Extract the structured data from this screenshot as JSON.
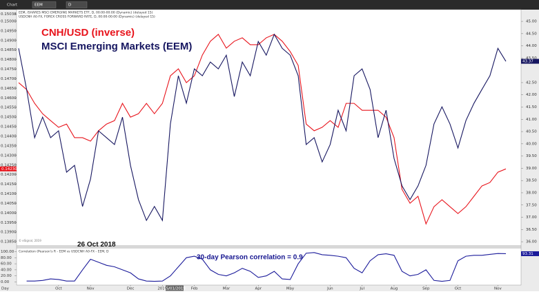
{
  "toolbar": {
    "title": "Chart",
    "symbol": "EEM",
    "interval": "D"
  },
  "chart_data": [
    {
      "type": "line",
      "header": [
        "EEM, ISHARES MSCI EMERGING MARKETS ETF, D, 00:00-00:00 (Dynamic) (delayed 15)",
        "USDCNH A0-FX, FOREX CROSS FORWARD RATE, D, 00:00-00:00 (Dynamic) (delayed 15)"
      ],
      "footnote": "© eSignal, 2019",
      "annotations": [
        {
          "text": "CNH/USD (inverse)",
          "color": "#e8141c"
        },
        {
          "text": "MSCI Emerging Markets (EEM)",
          "color": "#161660"
        },
        {
          "text": "26 Oct 2018",
          "color": "#111111"
        }
      ],
      "ylim": [
        0.13836,
        0.15061
      ],
      "yticks": [
        {
          "value": 0.15038,
          "label": "0.15038"
        },
        {
          "value": 0.15,
          "label": "0.15000"
        },
        {
          "value": 0.1495,
          "label": "0.14950"
        },
        {
          "value": 0.149,
          "label": "0.14900"
        },
        {
          "value": 0.1485,
          "label": "0.14850"
        },
        {
          "value": 0.148,
          "label": "0.14800"
        },
        {
          "value": 0.1475,
          "label": "0.14750"
        },
        {
          "value": 0.147,
          "label": "0.14700"
        },
        {
          "value": 0.1465,
          "label": "0.14650"
        },
        {
          "value": 0.146,
          "label": "0.14600"
        },
        {
          "value": 0.1455,
          "label": "0.14550"
        },
        {
          "value": 0.145,
          "label": "0.14500"
        },
        {
          "value": 0.1445,
          "label": "0.14450"
        },
        {
          "value": 0.144,
          "label": "0.14400"
        },
        {
          "value": 0.1435,
          "label": "0.14350"
        },
        {
          "value": 0.143,
          "label": "0.14300"
        },
        {
          "value": 0.1425,
          "label": "0.14250"
        },
        {
          "value": 0.142,
          "label": "0.14200"
        },
        {
          "value": 0.1415,
          "label": "0.14150"
        },
        {
          "value": 0.141,
          "label": "0.14100"
        },
        {
          "value": 0.1405,
          "label": "0.14050"
        },
        {
          "value": 0.14,
          "label": "0.14000"
        },
        {
          "value": 0.1395,
          "label": "0.13950"
        },
        {
          "value": 0.139,
          "label": "0.13900"
        },
        {
          "value": 0.1385,
          "label": "0.13850"
        }
      ],
      "y2lim": [
        35.89,
        45.48
      ],
      "y2ticks": [
        {
          "value": 45,
          "label": "45.00"
        },
        {
          "value": 44.5,
          "label": "44.50"
        },
        {
          "value": 44,
          "label": "44.00"
        },
        {
          "value": 43.5,
          "label": "43.50"
        },
        {
          "value": 42.5,
          "label": "42.50"
        },
        {
          "value": 42,
          "label": "42.00"
        },
        {
          "value": 41.5,
          "label": "41.50"
        },
        {
          "value": 41,
          "label": "41.00"
        },
        {
          "value": 40.5,
          "label": "40.50"
        },
        {
          "value": 40,
          "label": "40.00"
        },
        {
          "value": 39.5,
          "label": "39.50"
        },
        {
          "value": 39,
          "label": "39.00"
        },
        {
          "value": 38.5,
          "label": "38.50"
        },
        {
          "value": 38,
          "label": "38.00"
        },
        {
          "value": 37.5,
          "label": "37.50"
        },
        {
          "value": 37,
          "label": "37.00"
        },
        {
          "value": 36.5,
          "label": "36.50"
        },
        {
          "value": 36,
          "label": "36.00"
        }
      ],
      "series": [
        {
          "name": "USDCNH A0-FX",
          "color": "#e8141c",
          "axis": "y",
          "values": [
            0.1468,
            0.14644,
            0.14572,
            0.14518,
            0.14482,
            0.14447,
            0.14464,
            0.14393,
            0.14393,
            0.14375,
            0.14429,
            0.14464,
            0.14482,
            0.14572,
            0.145,
            0.14518,
            0.14572,
            0.14518,
            0.14572,
            0.14716,
            0.14752,
            0.1468,
            0.14716,
            0.14824,
            0.14896,
            0.14932,
            0.1486,
            0.14896,
            0.14914,
            0.14878,
            0.14878,
            0.14914,
            0.14932,
            0.14896,
            0.14842,
            0.1477,
            0.14464,
            0.14429,
            0.14447,
            0.14482,
            0.14447,
            0.14572,
            0.14572,
            0.14536,
            0.14536,
            0.14536,
            0.145,
            0.14393,
            0.14123,
            0.14051,
            0.14087,
            0.13943,
            0.14033,
            0.14069,
            0.14033,
            0.13997,
            0.14033,
            0.14087,
            0.14141,
            0.14159,
            0.14213,
            0.1423
          ],
          "value_labels": [
            null,
            null,
            null,
            null,
            null,
            null,
            null,
            null,
            null,
            null,
            null,
            null,
            null,
            null,
            null,
            null,
            null,
            null,
            null,
            null,
            null,
            null,
            null,
            null,
            null,
            null,
            null,
            null,
            null,
            null,
            null,
            null,
            null,
            null,
            null,
            null,
            null,
            null,
            null,
            null,
            null,
            null,
            null,
            null,
            null,
            null,
            null,
            null,
            null,
            null,
            null,
            null,
            null,
            null,
            null,
            null,
            null,
            null,
            null,
            null,
            null,
            "0.14230"
          ]
        },
        {
          "name": "EEM",
          "color": "#161660",
          "axis": "y2",
          "values": [
            43.9,
            42.22,
            40.25,
            41.09,
            40.25,
            40.53,
            38.84,
            39.12,
            37.44,
            38.56,
            40.53,
            40.25,
            39.97,
            41.09,
            39.12,
            37.72,
            36.87,
            37.44,
            36.87,
            40.81,
            42.78,
            41.66,
            43.06,
            42.78,
            43.34,
            43.06,
            43.62,
            41.93,
            43.34,
            42.78,
            44.18,
            43.62,
            44.47,
            43.9,
            43.62,
            42.78,
            39.97,
            40.25,
            39.26,
            39.97,
            41.37,
            40.53,
            42.78,
            43.06,
            42.22,
            40.25,
            41.37,
            39.4,
            38.28,
            37.72,
            38.28,
            39.12,
            40.81,
            41.51,
            40.81,
            39.83,
            40.95,
            41.65,
            42.22,
            42.78,
            43.9,
            43.37
          ]
        }
      ]
    },
    {
      "type": "line",
      "header": "Correlation (Pearson's R - EEM vs USDCNH A0-FX - EEM, D",
      "annotations": [
        {
          "text": "30-day Pearson correlation = 0.9",
          "color": "#161690"
        }
      ],
      "cursor_label": "15/01/2019",
      "axis_label": "Day",
      "categories": [
        null,
        null,
        null,
        null,
        null,
        "Oct",
        null,
        null,
        null,
        "Nov",
        null,
        null,
        null,
        null,
        "Dec",
        null,
        null,
        null,
        "2019",
        null,
        null,
        null,
        "Feb",
        null,
        null,
        null,
        "Mar",
        null,
        null,
        null,
        "Apr",
        null,
        null,
        null,
        "May",
        null,
        null,
        null,
        null,
        "Jun",
        null,
        null,
        null,
        "Jul",
        null,
        null,
        null,
        "Aug",
        null,
        null,
        null,
        "Sep",
        null,
        null,
        null,
        "Oct",
        null,
        null,
        null,
        null,
        "Nov",
        null
      ],
      "ylim": [
        -8,
        108
      ],
      "yticks": [
        {
          "value": 100,
          "label": "100.00"
        },
        {
          "value": 80,
          "label": "80.00"
        },
        {
          "value": 60,
          "label": "60.00"
        },
        {
          "value": 40,
          "label": "40.00"
        },
        {
          "value": 20,
          "label": "20.00"
        },
        {
          "value": 0,
          "label": "0.00"
        }
      ],
      "series": [
        {
          "name": "Correlation",
          "color": "#1a1a9a",
          "axis": "y",
          "values": [
            null,
            3,
            3,
            5,
            10,
            8,
            3,
            3,
            40,
            75,
            65,
            55,
            50,
            40,
            30,
            10,
            3,
            2,
            3,
            20,
            50,
            80,
            85,
            75,
            40,
            25,
            20,
            30,
            45,
            35,
            15,
            20,
            35,
            10,
            8,
            60,
            95,
            97,
            90,
            88,
            85,
            80,
            45,
            30,
            70,
            90,
            93,
            88,
            35,
            20,
            25,
            40,
            5,
            2,
            5,
            70,
            85,
            88,
            88,
            91,
            94,
            93.31
          ]
        }
      ]
    }
  ]
}
